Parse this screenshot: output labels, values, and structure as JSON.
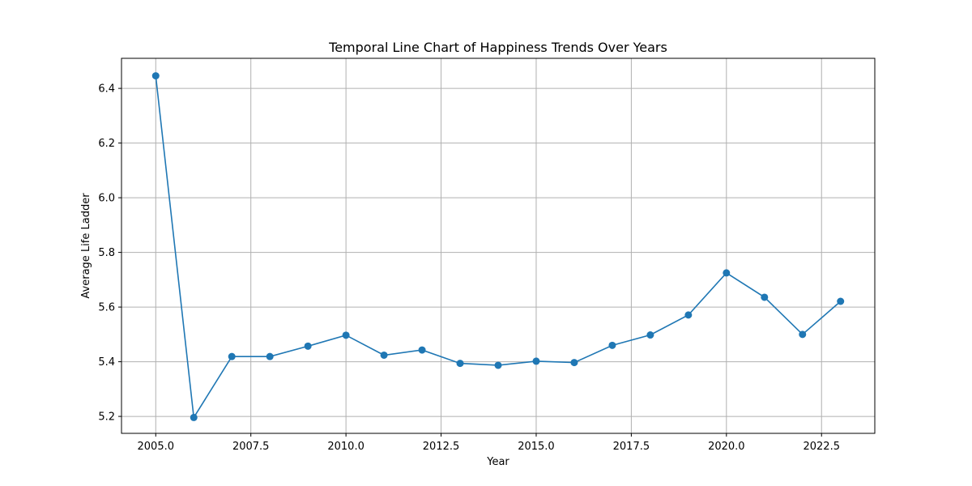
{
  "chart_data": {
    "type": "line",
    "title": "Temporal Line Chart of Happiness Trends Over Years",
    "xlabel": "Year",
    "ylabel": "Average Life Ladder",
    "xlim": [
      2004.1,
      2023.9
    ],
    "ylim": [
      5.138,
      6.51
    ],
    "x_ticks": [
      2005.0,
      2007.5,
      2010.0,
      2012.5,
      2015.0,
      2017.5,
      2020.0,
      2022.5
    ],
    "x_tick_labels": [
      "2005.0",
      "2007.5",
      "2010.0",
      "2012.5",
      "2015.0",
      "2017.5",
      "2020.0",
      "2022.5"
    ],
    "y_ticks": [
      5.2,
      5.4,
      5.6,
      5.8,
      6.0,
      6.2,
      6.4
    ],
    "y_tick_labels": [
      "5.2",
      "5.4",
      "5.6",
      "5.8",
      "6.0",
      "6.2",
      "6.4"
    ],
    "grid": true,
    "color": "#1f77b4",
    "marker": "circle",
    "series": [
      {
        "x": [
          2005,
          2006,
          2007,
          2008,
          2009,
          2010,
          2011,
          2012,
          2013,
          2014,
          2015,
          2016,
          2017,
          2018,
          2019,
          2020,
          2021,
          2022,
          2023
        ],
        "y": [
          6.446,
          5.196,
          5.419,
          5.419,
          5.457,
          5.497,
          5.424,
          5.443,
          5.394,
          5.387,
          5.402,
          5.397,
          5.46,
          5.498,
          5.571,
          5.725,
          5.636,
          5.5,
          5.621
        ]
      }
    ]
  }
}
